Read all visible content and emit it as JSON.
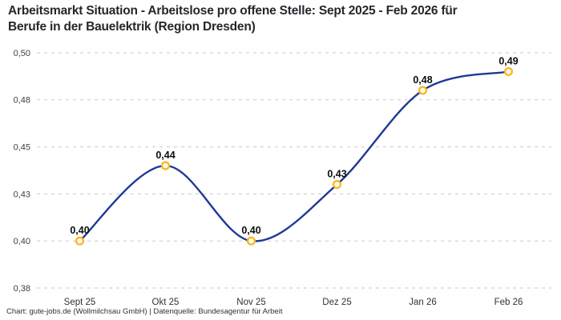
{
  "title": "Arbeitsmarkt Situation - Arbeitslose pro offene Stelle: Sept 2025 - Feb 2026 für\nBerufe in der Bauelektrik (Region Dresden)",
  "footer": "Chart: gute-jobs.de (Wollmilchsau GmbH) | Datenquelle: Bundesagentur für Arbeit",
  "chart_data": {
    "type": "line",
    "title": "Arbeitsmarkt Situation - Arbeitslose pro offene Stelle: Sept 2025 - Feb 2026 für Berufe in der Bauelektrik (Region Dresden)",
    "categories": [
      "Sept 25",
      "Okt 25",
      "Nov 25",
      "Dez 25",
      "Jan 26",
      "Feb 26"
    ],
    "series": [
      {
        "name": "Arbeitslose pro offene Stelle",
        "values": [
          0.4,
          0.44,
          0.4,
          0.43,
          0.48,
          0.49
        ],
        "point_labels": [
          "0,40",
          "0,44",
          "0,40",
          "0,43",
          "0,48",
          "0,49"
        ]
      }
    ],
    "xlabel": "",
    "ylabel": "",
    "ylim": [
      0.375,
      0.5
    ],
    "y_ticks": {
      "values": [
        0.5,
        0.475,
        0.45,
        0.425,
        0.4,
        0.375
      ],
      "labels": [
        "0,50",
        "0,48",
        "0,45",
        "0,43",
        "0,40",
        "0,38"
      ]
    },
    "grid": "horizontal-dashed",
    "legend_position": "none",
    "line_style": "smooth",
    "colors": {
      "line": "#1e3a96",
      "marker_stroke": "#fcb51b",
      "marker_fill": "#ffffff",
      "grid": "#c9cacc",
      "title_text": "#26262c",
      "axis_text": "#3f4147",
      "point_label_text": "#0c0c0e",
      "footer_text": "#2e3238",
      "background": "#ffffff"
    }
  }
}
